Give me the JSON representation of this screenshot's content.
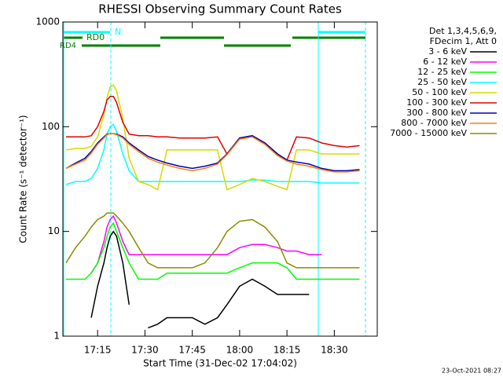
{
  "chart_data": {
    "type": "line",
    "title": "RHESSI Observing Summary Count Rates",
    "x_label": "Start Time (31-Dec-02 17:04:02)",
    "y_label": "Count Rate (s⁻¹ detector⁻¹)",
    "y_scale": "log",
    "ylim": [
      1,
      1000
    ],
    "yticks": [
      1,
      10,
      100,
      1000
    ],
    "xlim": [
      4,
      103.6
    ],
    "xticks": [
      {
        "value": 15,
        "label": "17:15"
      },
      {
        "value": 30,
        "label": "17:30"
      },
      {
        "value": 45,
        "label": "17:45"
      },
      {
        "value": 60,
        "label": "18:00"
      },
      {
        "value": 75,
        "label": "18:15"
      },
      {
        "value": 90,
        "label": "18:30"
      }
    ],
    "legend_header": [
      "Det 1,3,4,5,6,9,",
      "FDecim 1, Att 0"
    ],
    "flags": [
      "N",
      "RD0",
      "RD4"
    ],
    "footer": "23-Oct-2021 08:27",
    "x": [
      5,
      8,
      11,
      13,
      15,
      17,
      18,
      19,
      20,
      21,
      23,
      25,
      28,
      31,
      34,
      37,
      41,
      45,
      49,
      53,
      56,
      60,
      64,
      68,
      72,
      75,
      78,
      82,
      86,
      90,
      94,
      98
    ],
    "series": [
      {
        "name": "3 - 6 keV",
        "color": "#000000",
        "values": [
          null,
          null,
          null,
          1.5,
          3,
          5,
          7,
          9,
          10,
          9,
          5,
          2,
          null,
          1.2,
          1.3,
          1.5,
          1.5,
          1.5,
          1.3,
          1.5,
          2,
          3,
          3.5,
          3,
          2.5,
          2.5,
          2.5,
          2.5,
          null,
          null,
          null,
          null
        ]
      },
      {
        "name": "6 - 12 keV",
        "color": "#ff00ff",
        "values": [
          null,
          null,
          null,
          4,
          5,
          8,
          11,
          13,
          14,
          12,
          8,
          6,
          6,
          6,
          6,
          6,
          6,
          6,
          6,
          6,
          6,
          7,
          7.5,
          7.5,
          7,
          6.5,
          6.5,
          6,
          6,
          null,
          null,
          null
        ]
      },
      {
        "name": "12 - 25 keV",
        "color": "#00ff00",
        "values": [
          3.5,
          3.5,
          3.5,
          4,
          5,
          7,
          9,
          11,
          12,
          10,
          7,
          5,
          3.5,
          3.5,
          3.5,
          4,
          4,
          4,
          4,
          4,
          4,
          4.5,
          5,
          5,
          5,
          4.5,
          3.5,
          3.5,
          3.5,
          3.5,
          3.5,
          3.5
        ]
      },
      {
        "name": "25 - 50 keV",
        "color": "#00ffff",
        "values": [
          28,
          30,
          30,
          32,
          40,
          60,
          85,
          100,
          105,
          90,
          55,
          38,
          30,
          30,
          30,
          30,
          30,
          30,
          30,
          30,
          30,
          30,
          31,
          31,
          30,
          30,
          30,
          30,
          29,
          29,
          29,
          29
        ]
      },
      {
        "name": "50 - 100 keV",
        "color": "#d8d800",
        "values": [
          60,
          62,
          62,
          65,
          80,
          130,
          190,
          240,
          250,
          220,
          120,
          50,
          30,
          28,
          25,
          60,
          60,
          60,
          60,
          60,
          25,
          28,
          32,
          30,
          27,
          25,
          60,
          60,
          55,
          55,
          55,
          55
        ]
      },
      {
        "name": "100 - 300 keV",
        "color": "#e00000",
        "values": [
          80,
          80,
          80,
          82,
          100,
          140,
          180,
          195,
          195,
          170,
          110,
          85,
          82,
          82,
          80,
          80,
          78,
          78,
          78,
          80,
          55,
          78,
          82,
          70,
          55,
          48,
          80,
          78,
          70,
          66,
          64,
          66
        ]
      },
      {
        "name": "300 - 800 keV",
        "color": "#0000c0",
        "values": [
          40,
          45,
          50,
          58,
          70,
          80,
          85,
          86,
          86,
          85,
          80,
          70,
          60,
          52,
          48,
          45,
          42,
          40,
          42,
          45,
          55,
          78,
          82,
          70,
          55,
          48,
          46,
          44,
          40,
          38,
          38,
          39
        ]
      },
      {
        "name": "800 - 7000 keV",
        "color": "#ff8000",
        "values": [
          40,
          44,
          48,
          56,
          68,
          78,
          84,
          86,
          86,
          84,
          78,
          68,
          58,
          50,
          46,
          43,
          40,
          38,
          40,
          44,
          54,
          76,
          80,
          68,
          53,
          47,
          44,
          42,
          39,
          37,
          37,
          38
        ]
      },
      {
        "name": "7000 - 15000 keV",
        "color": "#8b8b00",
        "values": [
          5,
          7,
          9,
          11,
          13,
          14,
          15,
          15,
          15,
          14,
          12,
          10,
          7,
          5,
          4.5,
          4.5,
          4.5,
          4.5,
          5,
          7,
          10,
          12.5,
          13,
          11,
          8,
          5,
          4.5,
          4.5,
          4.5,
          4.5,
          4.5,
          4.5
        ]
      }
    ]
  }
}
